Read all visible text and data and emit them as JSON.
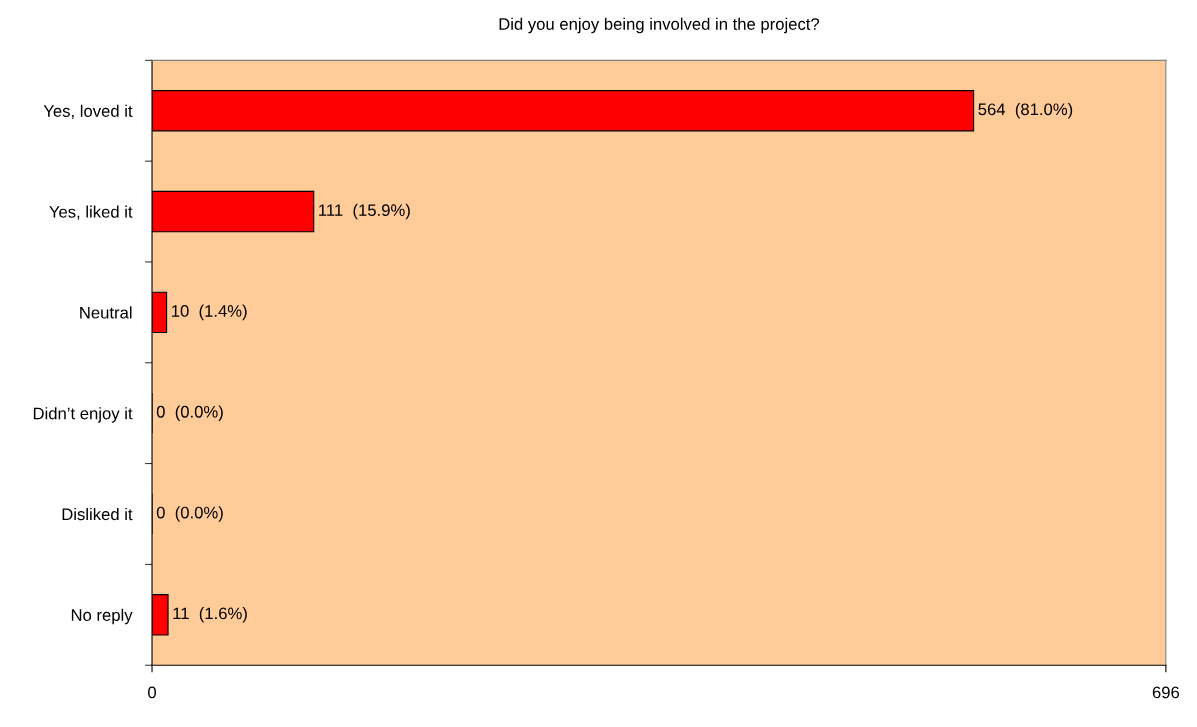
{
  "chart_data": {
    "type": "bar",
    "orientation": "horizontal",
    "title": "Did you enjoy being involved in the project?",
    "categories": [
      "Yes, loved it",
      "Yes, liked it",
      "Neutral",
      "Didn’t enjoy it",
      "Disliked it",
      "No reply"
    ],
    "values": [
      564,
      111,
      10,
      0,
      0,
      11
    ],
    "value_labels": [
      "564  (81.0%)",
      "111  (15.9%)",
      "10  (1.4%)",
      "0  (0.0%)",
      "0  (0.0%)",
      "11  (1.6%)"
    ],
    "color": "#ff0000",
    "xlim": [
      0,
      696
    ],
    "xticks": [
      0,
      696
    ],
    "grid": false,
    "legend": false
  }
}
